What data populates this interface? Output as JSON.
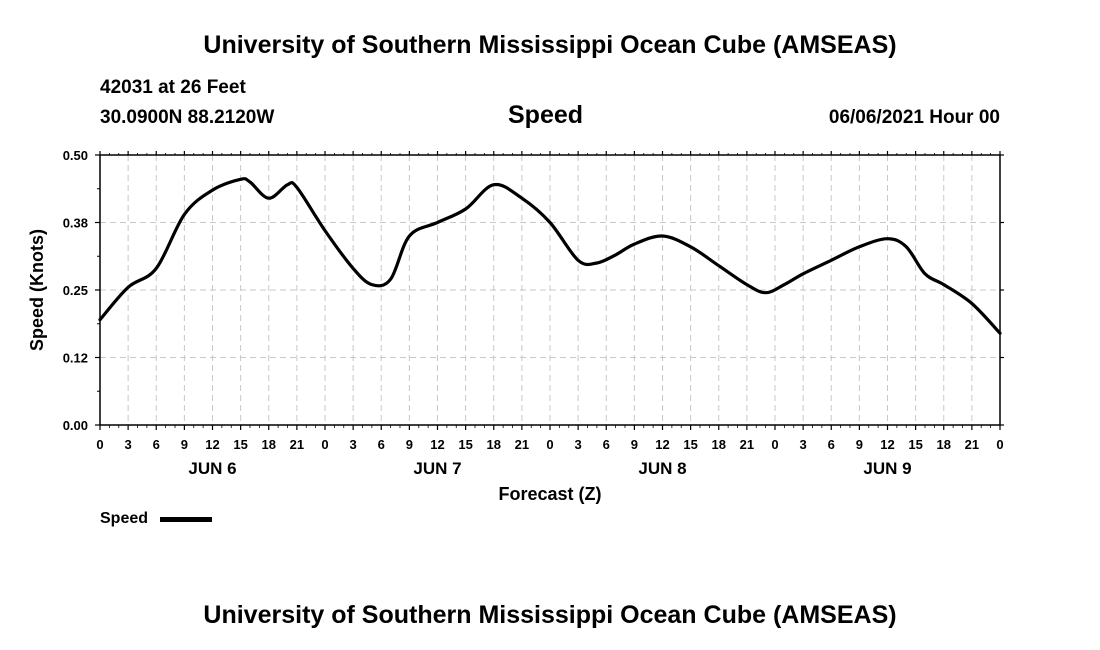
{
  "page": {
    "title_top": "University of Southern Mississippi Ocean Cube (AMSEAS)",
    "title_bottom": "University of Southern Mississippi Ocean Cube (AMSEAS)",
    "station": "42031 at 26 Feet",
    "coords": "30.0900N  88.2120W",
    "variable": "Speed",
    "forecast_time": "06/06/2021 Hour 00"
  },
  "chart_data": {
    "type": "line",
    "title": "Speed",
    "xlabel": "Forecast (Z)",
    "ylabel": "Speed (Knots)",
    "xlim": [
      0,
      96
    ],
    "ylim": [
      0,
      0.5
    ],
    "grid": true,
    "y_ticks": [
      0,
      0.125,
      0.25,
      0.375,
      0.5
    ],
    "y_tick_labels": [
      "0.00",
      "0.12",
      "0.25",
      "0.38",
      "0.50"
    ],
    "x_ticks": [
      0,
      3,
      6,
      9,
      12,
      15,
      18,
      21,
      24,
      27,
      30,
      33,
      36,
      39,
      42,
      45,
      48,
      51,
      54,
      57,
      60,
      63,
      66,
      69,
      72,
      75,
      78,
      81,
      84,
      87,
      90,
      93,
      96
    ],
    "x_tick_labels": [
      "0",
      "3",
      "6",
      "9",
      "12",
      "15",
      "18",
      "21",
      "0",
      "3",
      "6",
      "9",
      "12",
      "15",
      "18",
      "21",
      "0",
      "3",
      "6",
      "9",
      "12",
      "15",
      "18",
      "21",
      "0",
      "3",
      "6",
      "9",
      "12",
      "15",
      "18",
      "21",
      "0"
    ],
    "date_labels": [
      {
        "hour": 12,
        "label": "JUN 6"
      },
      {
        "hour": 36,
        "label": "JUN 7"
      },
      {
        "hour": 60,
        "label": "JUN 8"
      },
      {
        "hour": 84,
        "label": "JUN 9"
      }
    ],
    "legend": {
      "label": "Speed",
      "placement": "bottom-left"
    },
    "series": [
      {
        "name": "Speed",
        "color": "#000000",
        "x": [
          0,
          3,
          6,
          9,
          12,
          15,
          16,
          18,
          20,
          21,
          24,
          27,
          29,
          31,
          33,
          36,
          39,
          42,
          45,
          48,
          51,
          53,
          55,
          57,
          60,
          63,
          66,
          69,
          71,
          73,
          75,
          78,
          81,
          84,
          86,
          88,
          90,
          93,
          96
        ],
        "y": [
          0.195,
          0.255,
          0.29,
          0.39,
          0.435,
          0.455,
          0.45,
          0.42,
          0.445,
          0.44,
          0.36,
          0.29,
          0.26,
          0.27,
          0.35,
          0.375,
          0.4,
          0.445,
          0.42,
          0.375,
          0.305,
          0.3,
          0.315,
          0.335,
          0.35,
          0.33,
          0.295,
          0.26,
          0.245,
          0.26,
          0.28,
          0.305,
          0.33,
          0.345,
          0.33,
          0.28,
          0.26,
          0.225,
          0.17
        ]
      }
    ]
  }
}
